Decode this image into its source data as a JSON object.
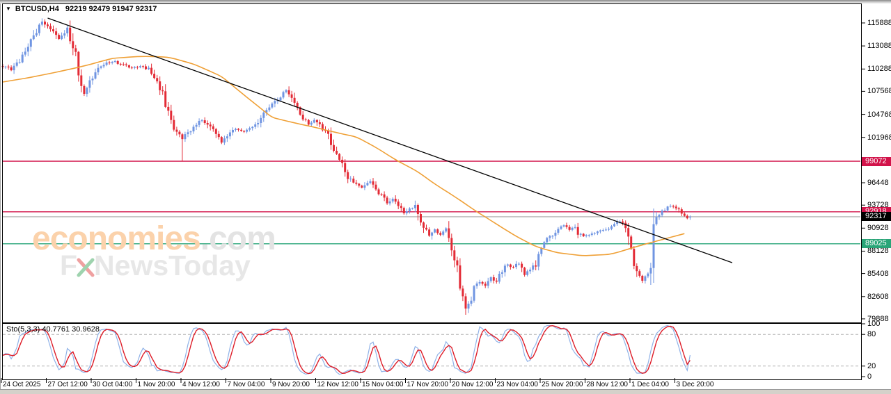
{
  "header": {
    "symbol_period": "BTCUSD,H4",
    "ohlc": "92219 92479 91947 92317"
  },
  "indicator": {
    "label": "Sto(5,3,3) 40.7761 30.9628"
  },
  "watermark": {
    "brand": "economies",
    "brand_suffix": ".com",
    "sub_prefix": "F",
    "sub_suffix": "NewsToday",
    "brand_color": "#fbd2ab",
    "suffix_color": "#e3e3e3",
    "cross_red": "#efa0a0",
    "cross_green": "#9ed3ae"
  },
  "colors": {
    "up_candle": "#7095e2",
    "down_candle": "#e32b36",
    "ma": "#efa036",
    "trendline": "#000000",
    "sto_main": "#8fb2e8",
    "sto_signal": "#de1c28",
    "grid_dash": "#b3b3b3",
    "axis_text": "#000000"
  },
  "chart_data": {
    "type": "candlestick",
    "symbol": "BTCUSD",
    "timeframe": "H4",
    "title": "BTCUSD,H4 92219 92479 91947 92317",
    "last_ohlc": {
      "open": 92219,
      "high": 92479,
      "low": 91947,
      "close": 92317
    },
    "price_axis": {
      "top_price": 116987,
      "bottom_price": 79629,
      "ticks": [
        115888,
        113088,
        110288,
        107568,
        104768,
        101968,
        96448,
        93728,
        90928,
        88128,
        85408,
        82608,
        79888
      ]
    },
    "time_axis": {
      "labels": [
        "24 Oct 2025",
        "27 Oct 12:00",
        "30 Oct 04:00",
        "1 Nov 20:00",
        "4 Nov 12:00",
        "7 Nov 04:00",
        "9 Nov 20:00",
        "12 Nov 12:00",
        "15 Nov 04:00",
        "17 Nov 20:00",
        "20 Nov 12:00",
        "23 Nov 04:00",
        "25 Nov 20:00",
        "28 Nov 12:00",
        "1 Dec 04:00",
        "3 Dec 20:00"
      ]
    },
    "levels": [
      {
        "price": 99072,
        "label": "99072",
        "line_color": "#d2134a",
        "badge_bg": "#d2134a",
        "type": "resistance"
      },
      {
        "price": 92918,
        "label": "92918",
        "line_color": "#d2134a",
        "badge_bg": "#d2134a",
        "type": "resistance"
      },
      {
        "price": 92317,
        "label": "92317",
        "line_color": "#b4b4b4",
        "badge_bg": "#000000",
        "type": "current-price"
      },
      {
        "price": 89025,
        "label": "89025",
        "line_color": "#2aa578",
        "badge_bg": "#2aa578",
        "type": "support"
      }
    ],
    "trendline": {
      "from_index": 16,
      "from_price": 116480,
      "to_index": 260,
      "to_price": 86730,
      "direction": "descending"
    },
    "candles_total": 246,
    "price_path": [
      [
        0,
        110648
      ],
      [
        3,
        110225
      ],
      [
        6,
        111239
      ],
      [
        10,
        113606
      ],
      [
        14,
        116141
      ],
      [
        18,
        114873
      ],
      [
        20,
        114028
      ],
      [
        23,
        115127
      ],
      [
        25,
        113183
      ],
      [
        28,
        108535
      ],
      [
        29,
        107266
      ],
      [
        32,
        109380
      ],
      [
        35,
        110648
      ],
      [
        39,
        111239
      ],
      [
        42,
        110901
      ],
      [
        46,
        110394
      ],
      [
        50,
        110648
      ],
      [
        52,
        110225
      ],
      [
        54,
        109380
      ],
      [
        57,
        107266
      ],
      [
        59,
        105153
      ],
      [
        61,
        103041
      ],
      [
        64,
        101773
      ],
      [
        66,
        102618
      ],
      [
        69,
        103463
      ],
      [
        71,
        104139
      ],
      [
        73,
        103632
      ],
      [
        76,
        102195
      ],
      [
        78,
        101350
      ],
      [
        80,
        102195
      ],
      [
        83,
        103041
      ],
      [
        86,
        102618
      ],
      [
        90,
        103463
      ],
      [
        93,
        105153
      ],
      [
        96,
        105998
      ],
      [
        99,
        107012
      ],
      [
        101,
        107688
      ],
      [
        104,
        106167
      ],
      [
        106,
        104730
      ],
      [
        109,
        103463
      ],
      [
        111,
        104139
      ],
      [
        114,
        103041
      ],
      [
        116,
        102195
      ],
      [
        118,
        100505
      ],
      [
        121,
        98815
      ],
      [
        123,
        97124
      ],
      [
        126,
        96279
      ],
      [
        128,
        95857
      ],
      [
        131,
        96533
      ],
      [
        133,
        95434
      ],
      [
        135,
        94843
      ],
      [
        137,
        93997
      ],
      [
        139,
        94589
      ],
      [
        141,
        93744
      ],
      [
        143,
        92645
      ],
      [
        145,
        93321
      ],
      [
        147,
        93490
      ],
      [
        148,
        92476
      ],
      [
        150,
        91208
      ],
      [
        152,
        89940
      ],
      [
        154,
        90785
      ],
      [
        156,
        90109
      ],
      [
        158,
        90785
      ],
      [
        160,
        88672
      ],
      [
        162,
        85713
      ],
      [
        163,
        83178
      ],
      [
        165,
        81318
      ],
      [
        167,
        82333
      ],
      [
        168,
        83601
      ],
      [
        170,
        84446
      ],
      [
        172,
        84023
      ],
      [
        174,
        84869
      ],
      [
        176,
        84446
      ],
      [
        178,
        85713
      ],
      [
        180,
        86559
      ],
      [
        182,
        86136
      ],
      [
        184,
        86728
      ],
      [
        186,
        85291
      ],
      [
        188,
        85882
      ],
      [
        190,
        86559
      ],
      [
        192,
        88249
      ],
      [
        194,
        89500
      ],
      [
        196,
        90109
      ],
      [
        198,
        90785
      ],
      [
        200,
        91208
      ],
      [
        202,
        90785
      ],
      [
        204,
        90954
      ],
      [
        205,
        90362
      ],
      [
        207,
        89940
      ],
      [
        209,
        90109
      ],
      [
        211,
        90362
      ],
      [
        213,
        90531
      ],
      [
        215,
        90785
      ],
      [
        217,
        91208
      ],
      [
        219,
        91631
      ],
      [
        221,
        91800
      ],
      [
        223,
        89940
      ],
      [
        225,
        86982
      ],
      [
        226,
        85291
      ],
      [
        228,
        84446
      ],
      [
        229,
        85037
      ],
      [
        231,
        86136
      ],
      [
        232,
        90785
      ],
      [
        233,
        92053
      ],
      [
        235,
        92899
      ],
      [
        237,
        93490
      ],
      [
        239,
        93575
      ],
      [
        241,
        93321
      ],
      [
        242,
        92476
      ],
      [
        244,
        92053
      ],
      [
        245,
        92317
      ]
    ],
    "ma_path": [
      [
        0,
        108704
      ],
      [
        9,
        109211
      ],
      [
        19,
        109887
      ],
      [
        29,
        110648
      ],
      [
        39,
        111577
      ],
      [
        49,
        111831
      ],
      [
        59,
        111746
      ],
      [
        68,
        110901
      ],
      [
        78,
        109380
      ],
      [
        87,
        106845
      ],
      [
        96,
        104394
      ],
      [
        103,
        103802
      ],
      [
        111,
        103211
      ],
      [
        118,
        102619
      ],
      [
        126,
        102027
      ],
      [
        133,
        100759
      ],
      [
        140,
        99238
      ],
      [
        148,
        97801
      ],
      [
        154,
        96280
      ],
      [
        160,
        95012
      ],
      [
        168,
        93152
      ],
      [
        175,
        91631
      ],
      [
        183,
        89940
      ],
      [
        190,
        88672
      ],
      [
        198,
        87911
      ],
      [
        207,
        87573
      ],
      [
        217,
        87742
      ],
      [
        224,
        88503
      ],
      [
        232,
        89264
      ],
      [
        245,
        90447
      ]
    ],
    "overrides": [
      {
        "i": 14,
        "high": 116450
      },
      {
        "i": 64,
        "low": 99050
      },
      {
        "i": 165,
        "low": 80390
      },
      {
        "i": 245,
        "open": 92219,
        "high": 92479,
        "low": 91947,
        "close": 92317
      }
    ],
    "stochastic": {
      "name": "Sto(5,3,3)",
      "k_period": 5,
      "slowing": 3,
      "d_period": 3,
      "current_main": 40.7761,
      "current_signal": 30.9628,
      "range": [
        0,
        100
      ],
      "grid_levels": [
        80,
        20
      ],
      "axis_labels": [
        "100",
        "80",
        "20",
        "0"
      ]
    },
    "legend_position": "none",
    "grid": "off"
  }
}
